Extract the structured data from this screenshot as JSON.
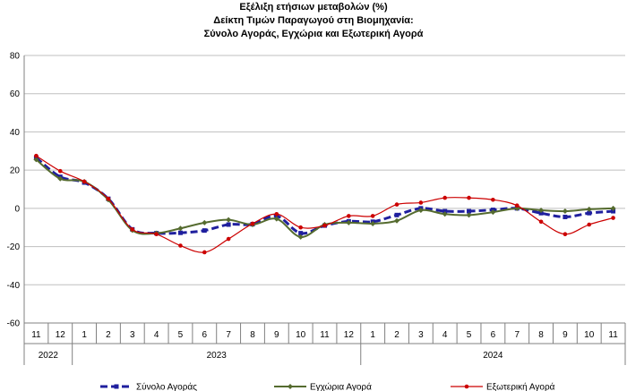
{
  "chart_data": {
    "type": "line",
    "title_lines": [
      "Εξέλιξη ετήσιων μεταβολών (%)",
      "Δείκτη Τιμών Παραγωγού στη Βιομηχανία:",
      "Σύνολο Αγοράς, Εγχώρια και Εξωτερική Αγορά"
    ],
    "x_month_labels": [
      "11",
      "12",
      "1",
      "2",
      "3",
      "4",
      "5",
      "6",
      "7",
      "8",
      "9",
      "10",
      "11",
      "12",
      "1",
      "2",
      "3",
      "4",
      "5",
      "6",
      "7",
      "8",
      "9",
      "10",
      "11"
    ],
    "year_groups": [
      {
        "label": "2022",
        "start": 0,
        "end": 1
      },
      {
        "label": "2023",
        "start": 2,
        "end": 13
      },
      {
        "label": "2024",
        "start": 14,
        "end": 24
      }
    ],
    "ylim": [
      -60,
      80
    ],
    "yticks": [
      -60,
      -40,
      -20,
      0,
      20,
      40,
      60,
      80
    ],
    "ytick_labels": [
      "-60",
      "-40",
      "-20",
      "0",
      "20",
      "40",
      "60",
      "80"
    ],
    "grid": "horizontal",
    "legend_position": "bottom",
    "series": [
      {
        "name": "Σύνολο Αγοράς",
        "color": "#1f1f9e",
        "style": "dashed-square",
        "values": [
          26.5,
          16.5,
          13.5,
          5.0,
          -11.0,
          -13.0,
          -12.8,
          -11.6,
          -8.5,
          -8.3,
          -4.0,
          -13.0,
          -9.0,
          -6.8,
          -7.0,
          -3.5,
          0.0,
          -1.5,
          -1.5,
          -0.8,
          0.0,
          -2.5,
          -4.5,
          -2.5,
          -1.5
        ]
      },
      {
        "name": "Εγχώρια Αγορά",
        "color": "#556b2f",
        "style": "solid-diamond",
        "values": [
          25.5,
          15.5,
          14.0,
          4.5,
          -11.5,
          -13.0,
          -10.5,
          -7.5,
          -6.0,
          -8.5,
          -5.5,
          -15.0,
          -8.5,
          -7.5,
          -8.0,
          -6.5,
          -1.0,
          -3.0,
          -3.5,
          -2.0,
          0.0,
          -1.0,
          -1.5,
          -0.5,
          0.0
        ]
      },
      {
        "name": "Εξωτερική Αγορά",
        "color": "#cc0000",
        "style": "solid-circle",
        "values": [
          27.5,
          19.5,
          14.0,
          5.0,
          -11.0,
          -13.5,
          -19.5,
          -23.0,
          -16.0,
          -8.0,
          -3.0,
          -10.0,
          -9.0,
          -4.0,
          -4.0,
          2.0,
          3.0,
          5.5,
          5.5,
          4.5,
          1.5,
          -7.0,
          -13.5,
          -8.5,
          -5.0
        ]
      }
    ]
  }
}
